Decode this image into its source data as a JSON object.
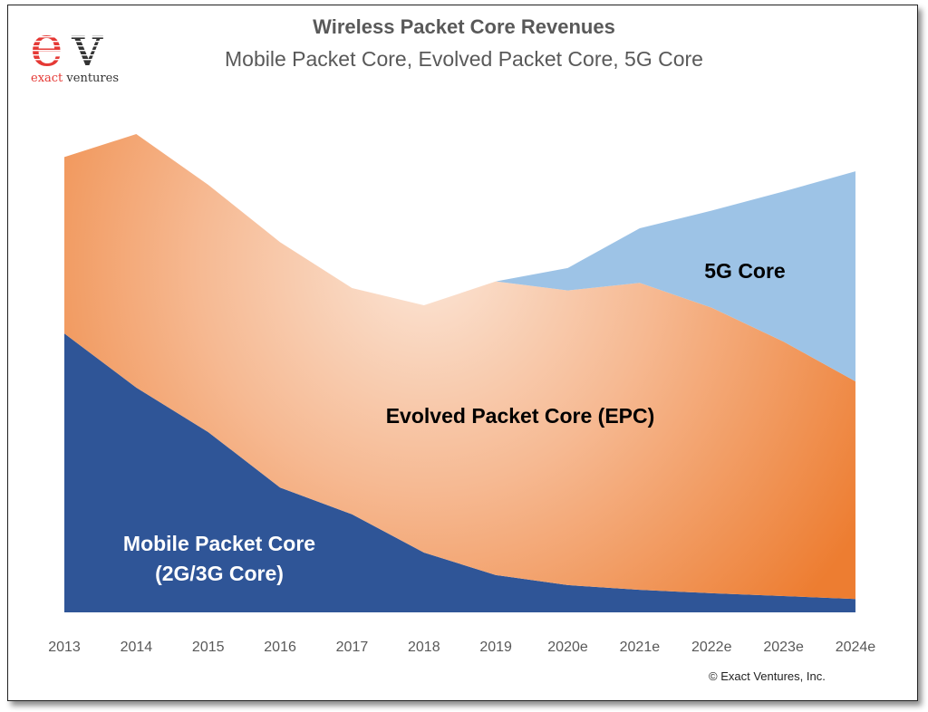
{
  "logo": {
    "text": "exact ventures",
    "letters": "ev",
    "colors": {
      "e": "#e53935",
      "v": "#333333"
    }
  },
  "copyright": "© Exact Ventures, Inc.",
  "chart_data": {
    "type": "area",
    "stacked": true,
    "title": "Wireless Packet Core Revenues",
    "subtitle": "Mobile Packet Core, Evolved Packet Core, 5G Core",
    "categories": [
      "2013",
      "2014",
      "2015",
      "2016",
      "2017",
      "2018",
      "2019",
      "2020e",
      "2021e",
      "2022e",
      "2023e",
      "2024e"
    ],
    "y_axis_shown": false,
    "grid": false,
    "legend": "in-area labels",
    "series": [
      {
        "name": "Mobile Packet Core (2G/3G Core)",
        "label_lines": [
          "Mobile Packet Core",
          "(2G/3G Core)"
        ],
        "color": "#2f5597",
        "values": [
          58.3,
          47.0,
          37.7,
          26.1,
          20.5,
          12.5,
          7.8,
          5.7,
          4.7,
          4.0,
          3.4,
          2.8
        ]
      },
      {
        "name": "Evolved Packet Core (EPC)",
        "label_lines": [
          "Evolved Packet Core (EPC)"
        ],
        "color": "#ed7d31",
        "color_light": "#fbe5d6",
        "values": [
          36.9,
          53.0,
          51.7,
          51.3,
          47.3,
          51.7,
          61.4,
          61.6,
          64.2,
          59.7,
          53.2,
          45.5
        ]
      },
      {
        "name": "5G Core",
        "label_lines": [
          "5G Core"
        ],
        "color": "#9dc3e6",
        "values": [
          0,
          0,
          0,
          0,
          0,
          0,
          0,
          4.7,
          11.4,
          20.3,
          31.4,
          43.9
        ]
      }
    ]
  }
}
